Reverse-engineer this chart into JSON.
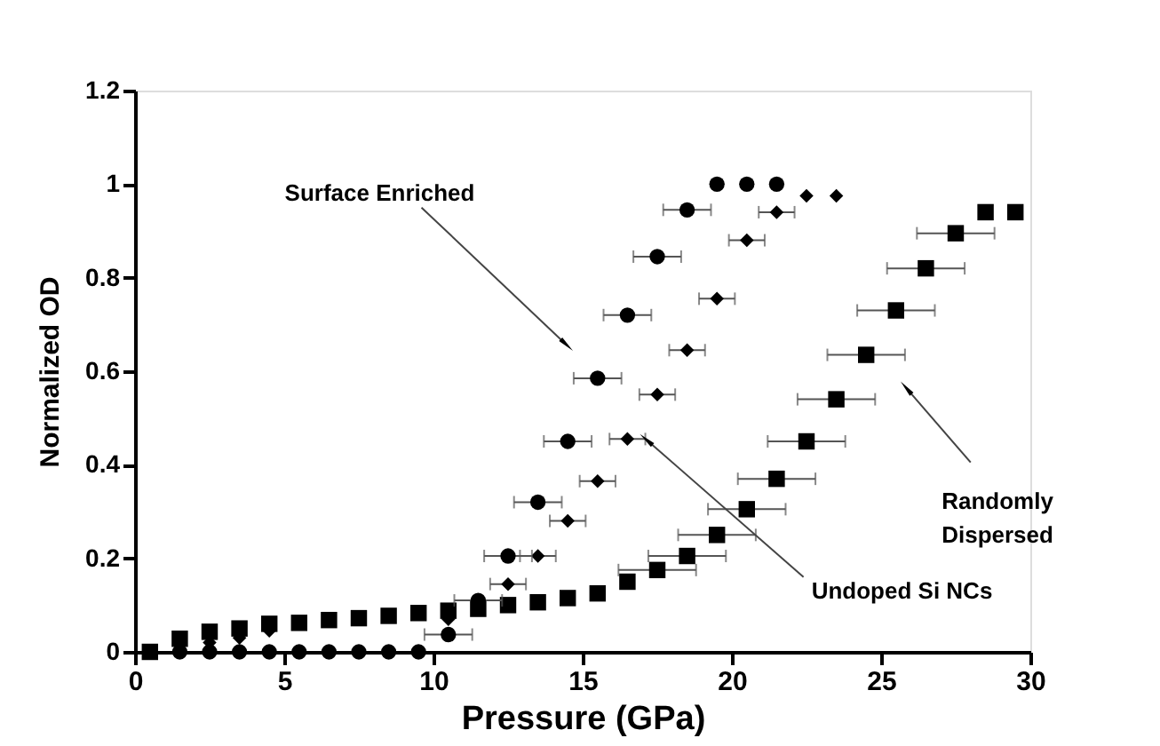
{
  "chart_data": {
    "type": "scatter",
    "xlabel": "Pressure (GPa)",
    "ylabel": "Normalized OD",
    "xlim": [
      0,
      30
    ],
    "xticks": [
      0,
      5,
      10,
      15,
      20,
      25,
      30
    ],
    "ylim": [
      0,
      1.2
    ],
    "yticks": [
      0,
      0.2,
      0.4,
      0.6,
      0.8,
      1,
      1.2
    ],
    "grid": false,
    "annotations": [
      "Surface Enriched",
      {
        "text": "Undoped Si NCs",
        "x": 17.2,
        "y": 0.45
      },
      "Randomly\nDispersed"
    ],
    "series": [
      {
        "color": "#000000",
        "marker": "square",
        "x": [
          0.5,
          1.5,
          2.5,
          3.5,
          4.5,
          5.5,
          6.5,
          7.5,
          8.5,
          9.5,
          10.5,
          11.5,
          12.5,
          13.5,
          14.5,
          15.5,
          16.5,
          17.5,
          18.5,
          19.5,
          20.5,
          21.5,
          22.5,
          23.5,
          24.5,
          25.5,
          26.5,
          27.5,
          28.5,
          29.5
        ],
        "values": [
          0,
          0.028,
          0.043,
          0.05,
          0.06,
          0.062,
          0.068,
          0.072,
          0.077,
          0.083,
          0.088,
          0.092,
          0.1,
          0.106,
          0.115,
          0.125,
          0.15,
          0.175,
          0.205,
          0.25,
          0.305,
          0.37,
          0.45,
          0.54,
          0.635,
          0.73,
          0.82,
          0.895,
          0.94,
          0.94
        ],
        "xerrors": [
          null,
          null,
          null,
          null,
          null,
          null,
          null,
          null,
          null,
          null,
          null,
          null,
          null,
          null,
          null,
          null,
          null,
          1.3,
          1.3,
          1.3,
          1.3,
          1.3,
          1.3,
          1.3,
          1.3,
          1.3,
          1.3,
          1.3,
          null,
          null
        ]
      },
      {
        "color": "#000000",
        "marker": "diamond",
        "x": [
          2.5,
          3.5,
          4.5,
          10.5,
          12.5,
          13.5,
          14.5,
          15.5,
          16.5,
          17.5,
          18.5,
          19.5,
          20.5,
          21.5,
          22.5,
          23.5
        ],
        "values": [
          0.02,
          0.03,
          0.045,
          0.07,
          0.145,
          0.205,
          0.28,
          0.365,
          0.455,
          0.55,
          0.645,
          0.755,
          0.88,
          0.94,
          0.975,
          0.975
        ],
        "xerrors": [
          null,
          null,
          null,
          null,
          0.6,
          0.6,
          0.6,
          0.6,
          0.6,
          0.6,
          0.6,
          0.6,
          0.6,
          0.6,
          null,
          null
        ]
      },
      {
        "color": "#000000",
        "marker": "circle",
        "x": [
          1.5,
          2.5,
          3.5,
          4.5,
          5.5,
          6.5,
          7.5,
          8.5,
          9.5,
          10.5,
          11.5,
          12.5,
          13.5,
          14.5,
          15.5,
          16.5,
          17.5,
          18.5,
          19.5,
          20.5,
          21.5
        ],
        "values": [
          0,
          0,
          0,
          0,
          0,
          0,
          0,
          0,
          0,
          0.037,
          0.11,
          0.205,
          0.32,
          0.45,
          0.585,
          0.72,
          0.845,
          0.945,
          1,
          1,
          1
        ],
        "xerrors": [
          null,
          null,
          null,
          null,
          null,
          null,
          null,
          null,
          null,
          0.8,
          0.8,
          0.8,
          0.8,
          0.8,
          0.8,
          0.8,
          0.8,
          0.8,
          null,
          null,
          null
        ]
      }
    ]
  }
}
